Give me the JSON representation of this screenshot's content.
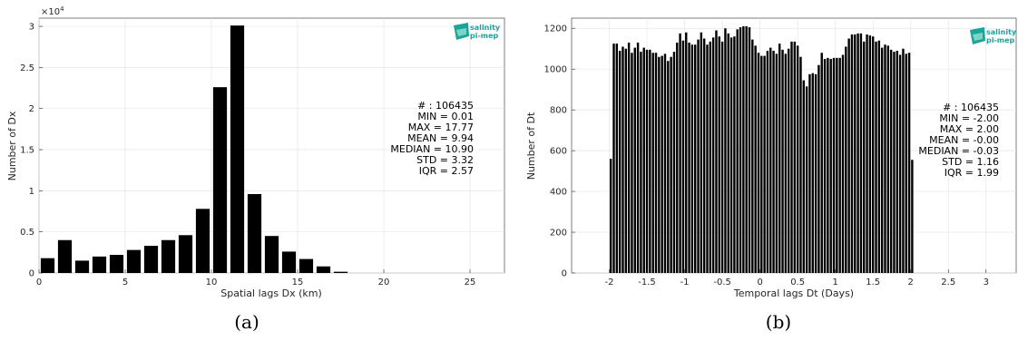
{
  "chart_data": [
    {
      "type": "bar",
      "caption": "(a)",
      "xlabel": "Spatial lags Dx (km)",
      "ylabel": "Number of Dx",
      "exponent_label": "×10",
      "exponent_power": "4",
      "xlim": [
        0,
        27
      ],
      "ylim": [
        0,
        3.1
      ],
      "bar_width": 0.8,
      "grid": true,
      "x": [
        0.5,
        1.5,
        2.5,
        3.5,
        4.5,
        5.5,
        6.5,
        7.5,
        8.5,
        9.5,
        10.5,
        11.5,
        12.5,
        13.5,
        14.5,
        15.5,
        16.5,
        17.5
      ],
      "values": [
        0.18,
        0.4,
        0.15,
        0.2,
        0.22,
        0.28,
        0.33,
        0.4,
        0.46,
        0.78,
        2.26,
        3.01,
        0.96,
        0.45,
        0.26,
        0.17,
        0.08,
        0.015
      ],
      "xticks": [
        0,
        5,
        10,
        15,
        20,
        25
      ],
      "xtick_labels": [
        "0",
        "5",
        "10",
        "15",
        "20",
        "25"
      ],
      "yticks": [
        0,
        0.5,
        1,
        1.5,
        2,
        2.5,
        3
      ],
      "ytick_labels": [
        "0",
        "0.5",
        "1",
        "1.5",
        "2",
        "2.5",
        "3"
      ],
      "stats": [
        "# : 106435",
        "MIN = 0.01",
        "MAX =  17.77",
        "MEAN = 9.94",
        "MEDIAN = 10.90",
        "STD = 3.32",
        "IQR = 2.57"
      ],
      "logo": [
        "salinity",
        "pi-mep"
      ]
    },
    {
      "type": "bar",
      "caption": "(b)",
      "xlabel": "Temporal lags Dt (Days)",
      "ylabel": "Number of Dt",
      "xlim": [
        -2.5,
        3.4
      ],
      "ylim": [
        0,
        1250
      ],
      "bar_width": 0.029,
      "grid": true,
      "x_start": -1.98,
      "x_step": 0.04,
      "values": [
        560,
        1125,
        1125,
        1090,
        1110,
        1100,
        1130,
        1080,
        1105,
        1130,
        1085,
        1105,
        1095,
        1095,
        1080,
        1080,
        1060,
        1065,
        1075,
        1040,
        1060,
        1085,
        1130,
        1175,
        1140,
        1180,
        1130,
        1120,
        1120,
        1145,
        1180,
        1150,
        1120,
        1135,
        1155,
        1190,
        1160,
        1135,
        1200,
        1175,
        1155,
        1160,
        1195,
        1205,
        1210,
        1210,
        1205,
        1145,
        1115,
        1080,
        1065,
        1065,
        1090,
        1105,
        1090,
        1075,
        1125,
        1095,
        1075,
        1100,
        1135,
        1135,
        1115,
        1060,
        945,
        915,
        975,
        980,
        975,
        1020,
        1080,
        1050,
        1055,
        1050,
        1055,
        1055,
        1055,
        1070,
        1110,
        1150,
        1170,
        1170,
        1175,
        1175,
        1135,
        1170,
        1165,
        1160,
        1135,
        1140,
        1105,
        1120,
        1115,
        1095,
        1085,
        1090,
        1070,
        1100,
        1075,
        1080,
        555
      ],
      "xticks": [
        -2,
        -1.5,
        -1,
        -0.5,
        0,
        0.5,
        1,
        1.5,
        2,
        2.5,
        3
      ],
      "xtick_labels": [
        "-2",
        "-1.5",
        "-1",
        "-0.5",
        "0",
        "0.5",
        "1",
        "1.5",
        "2",
        "2.5",
        "3"
      ],
      "yticks": [
        0,
        200,
        400,
        600,
        800,
        1000,
        1200
      ],
      "ytick_labels": [
        "0",
        "200",
        "400",
        "600",
        "800",
        "1000",
        "1200"
      ],
      "stats": [
        "# : 106435",
        "MIN = -2.00",
        "MAX =  2.00",
        "MEAN = -0.00",
        "MEDIAN = -0.03",
        "STD = 1.16",
        "IQR = 1.99"
      ],
      "logo": [
        "salinity",
        "pi-mep"
      ]
    }
  ]
}
